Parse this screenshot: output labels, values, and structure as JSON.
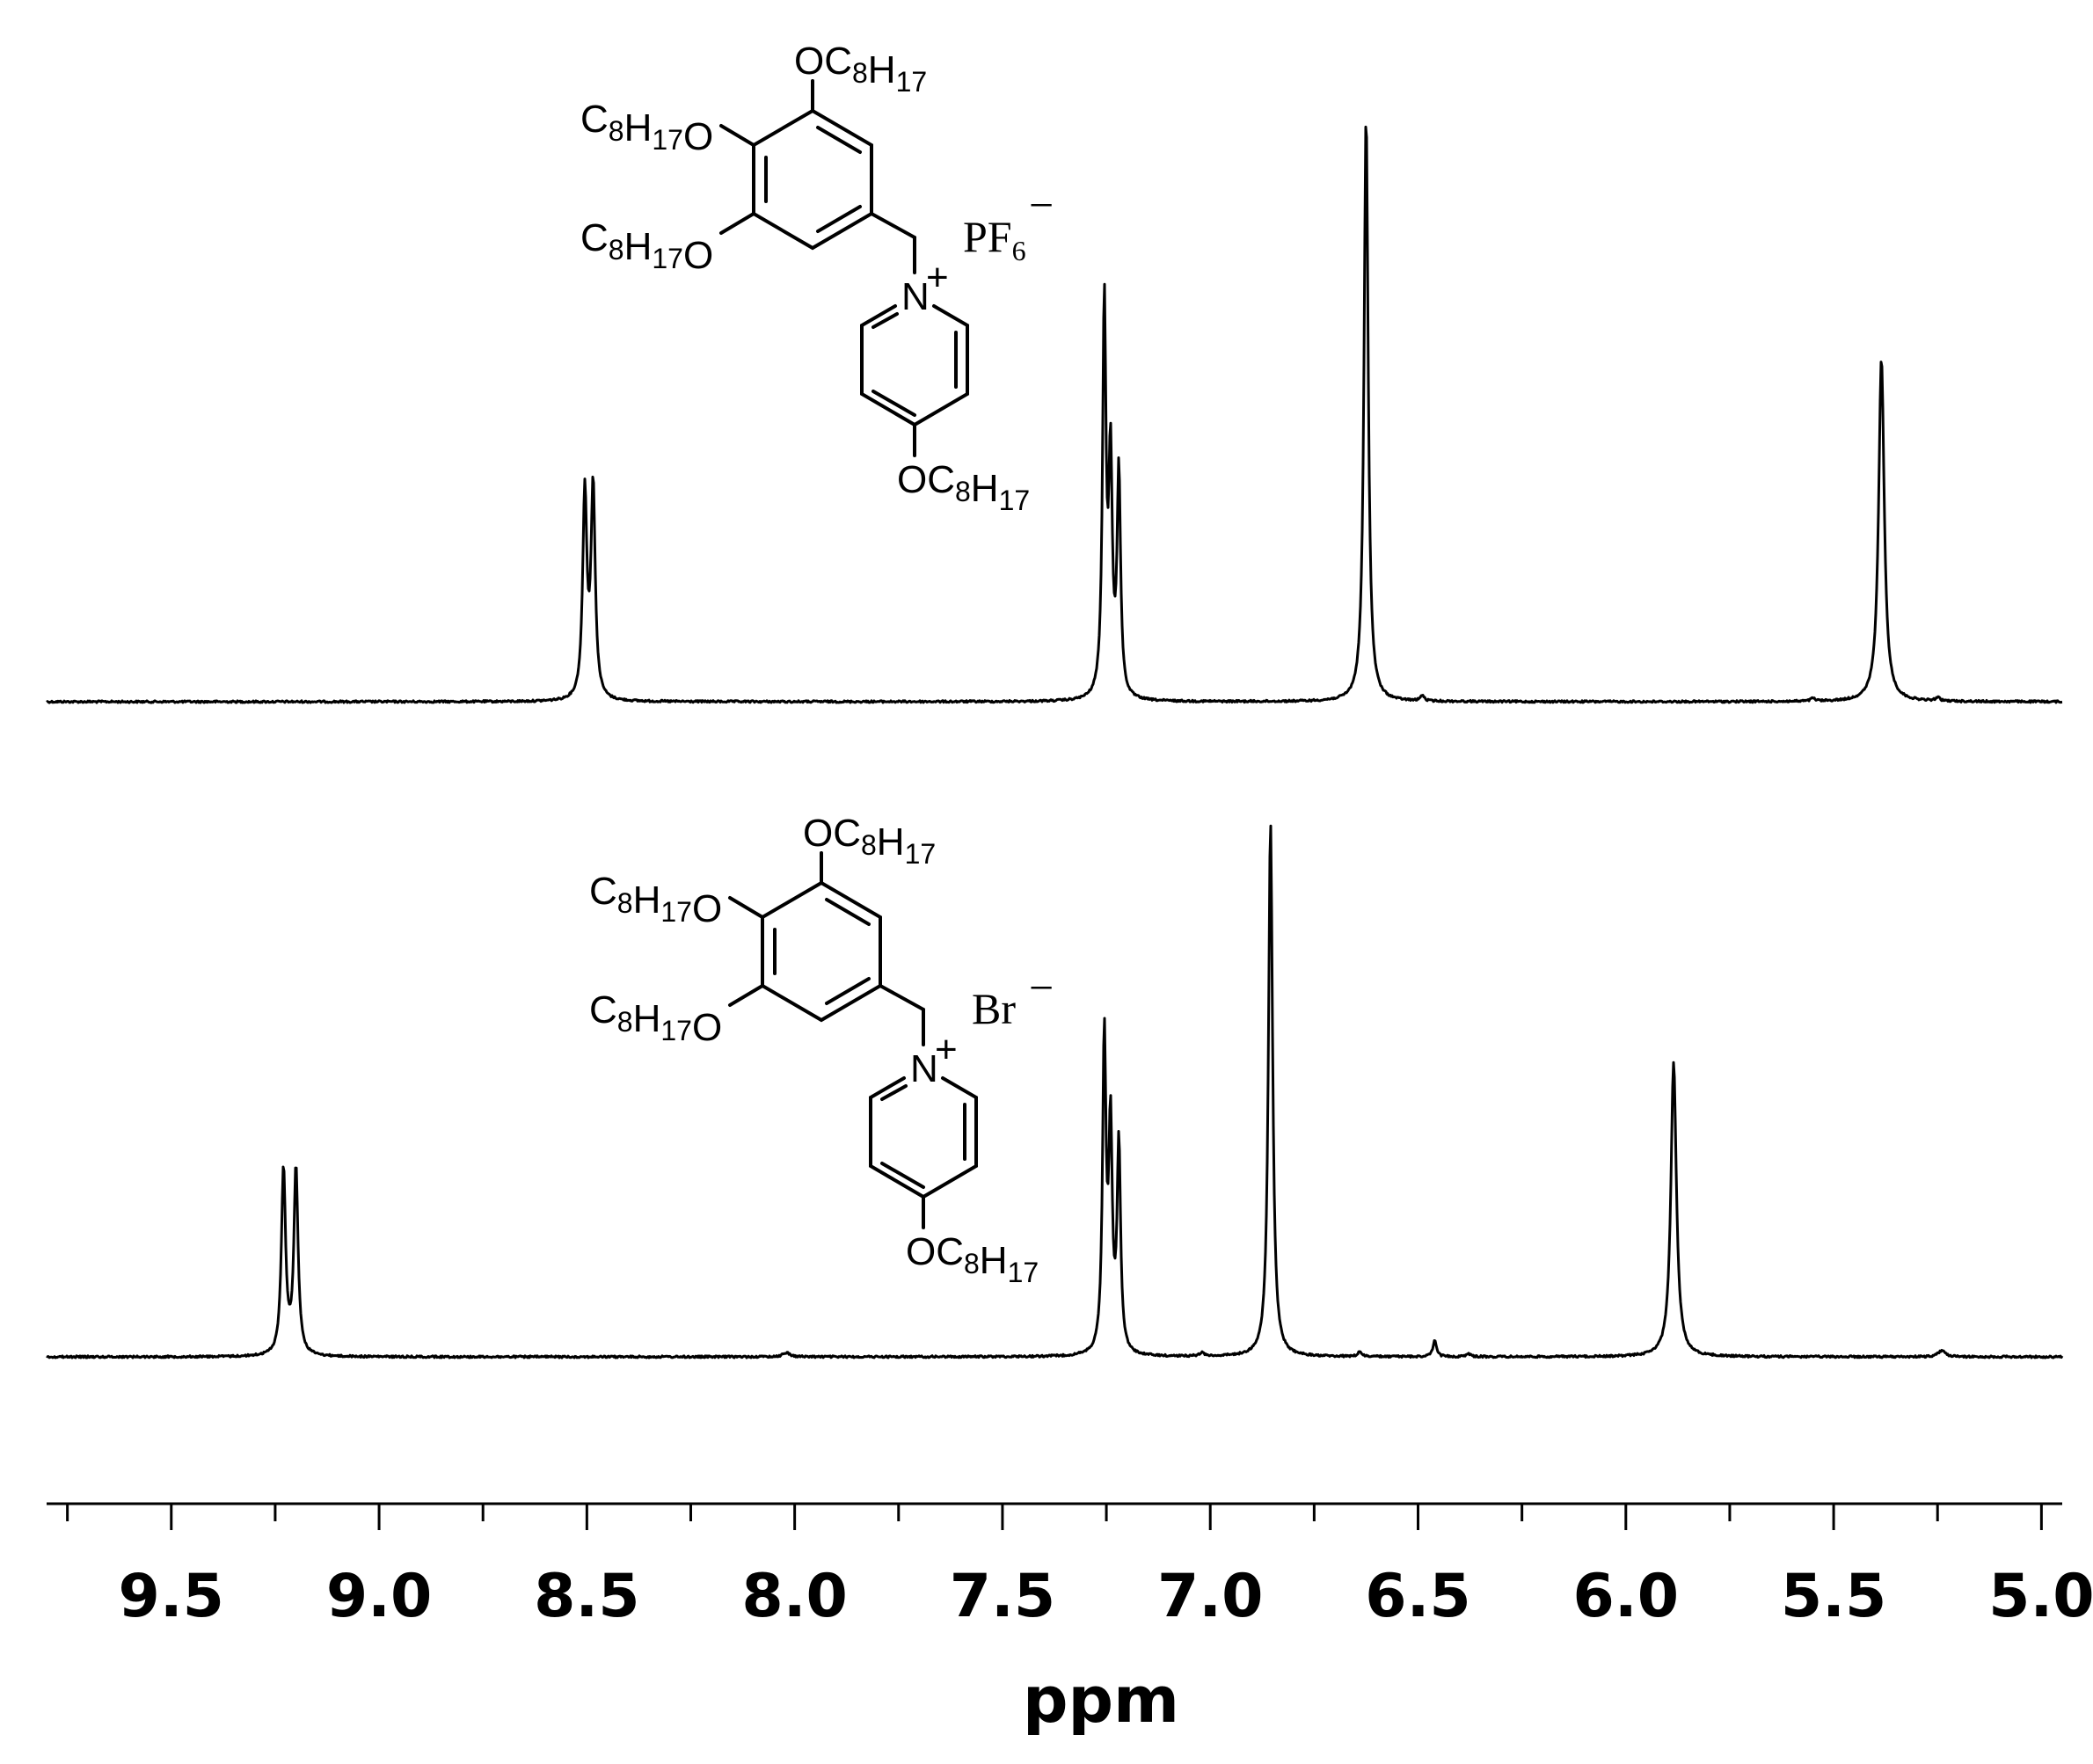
{
  "chart_data": {
    "type": "line",
    "xlabel": "ppm",
    "ylabel": "",
    "xlim": [
      9.8,
      4.95
    ],
    "x_reversed": true,
    "x_ticks": [
      9.5,
      9.0,
      8.5,
      8.0,
      7.5,
      7.0,
      6.5,
      6.0,
      5.5,
      5.0
    ],
    "x_tick_labels": [
      "9.5",
      "9.0",
      "8.5",
      "8.0",
      "7.5",
      "7.0",
      "6.5",
      "6.0",
      "5.5",
      "5.0"
    ],
    "minor_tick_step": 0.25,
    "grid": false,
    "series": [
      {
        "id": "pf6",
        "relative_height_scale": 1.0,
        "peaks": [
          {
            "ppm": 8.505,
            "height": 0.35,
            "width": 0.006
          },
          {
            "ppm": 8.485,
            "height": 0.36,
            "width": 0.006
          },
          {
            "ppm": 7.255,
            "height": 0.67,
            "width": 0.005
          },
          {
            "ppm": 7.24,
            "height": 0.39,
            "width": 0.005
          },
          {
            "ppm": 7.22,
            "height": 0.38,
            "width": 0.005
          },
          {
            "ppm": 6.625,
            "height": 1.0,
            "width": 0.006
          },
          {
            "ppm": 6.49,
            "height": 0.01,
            "width": 0.005
          },
          {
            "ppm": 5.55,
            "height": 0.005,
            "width": 0.006
          },
          {
            "ppm": 5.385,
            "height": 0.585,
            "width": 0.008
          },
          {
            "ppm": 5.25,
            "height": 0.006,
            "width": 0.006
          }
        ]
      },
      {
        "id": "br",
        "relative_height_scale": 1.0,
        "peaks": [
          {
            "ppm": 9.23,
            "height": 0.35,
            "width": 0.006
          },
          {
            "ppm": 9.2,
            "height": 0.35,
            "width": 0.006
          },
          {
            "ppm": 8.02,
            "height": 0.008,
            "width": 0.01
          },
          {
            "ppm": 7.255,
            "height": 0.59,
            "width": 0.005
          },
          {
            "ppm": 7.24,
            "height": 0.41,
            "width": 0.005
          },
          {
            "ppm": 7.22,
            "height": 0.39,
            "width": 0.005
          },
          {
            "ppm": 7.02,
            "height": 0.006,
            "width": 0.008
          },
          {
            "ppm": 6.855,
            "height": 1.0,
            "width": 0.006
          },
          {
            "ppm": 6.64,
            "height": 0.01,
            "width": 0.005
          },
          {
            "ppm": 6.46,
            "height": 0.03,
            "width": 0.005
          },
          {
            "ppm": 6.38,
            "height": 0.006,
            "width": 0.006
          },
          {
            "ppm": 5.885,
            "height": 0.55,
            "width": 0.008
          },
          {
            "ppm": 5.24,
            "height": 0.012,
            "width": 0.01
          }
        ]
      }
    ]
  },
  "structures": {
    "pf6": {
      "group_top": "OC8H17",
      "group_left_upper": "C8H17O",
      "group_left_lower": "C8H17O",
      "group_bottom": "OC8H17",
      "nitrogen": "N",
      "charge": "+",
      "anion": "PF6",
      "anion_charge": "−"
    },
    "br": {
      "group_top": "OC8H17",
      "group_left_upper": "C8H17O",
      "group_left_lower": "C8H17O",
      "group_bottom": "OC8H17",
      "nitrogen": "N",
      "charge": "+",
      "anion": "Br",
      "anion_charge": "−"
    }
  }
}
